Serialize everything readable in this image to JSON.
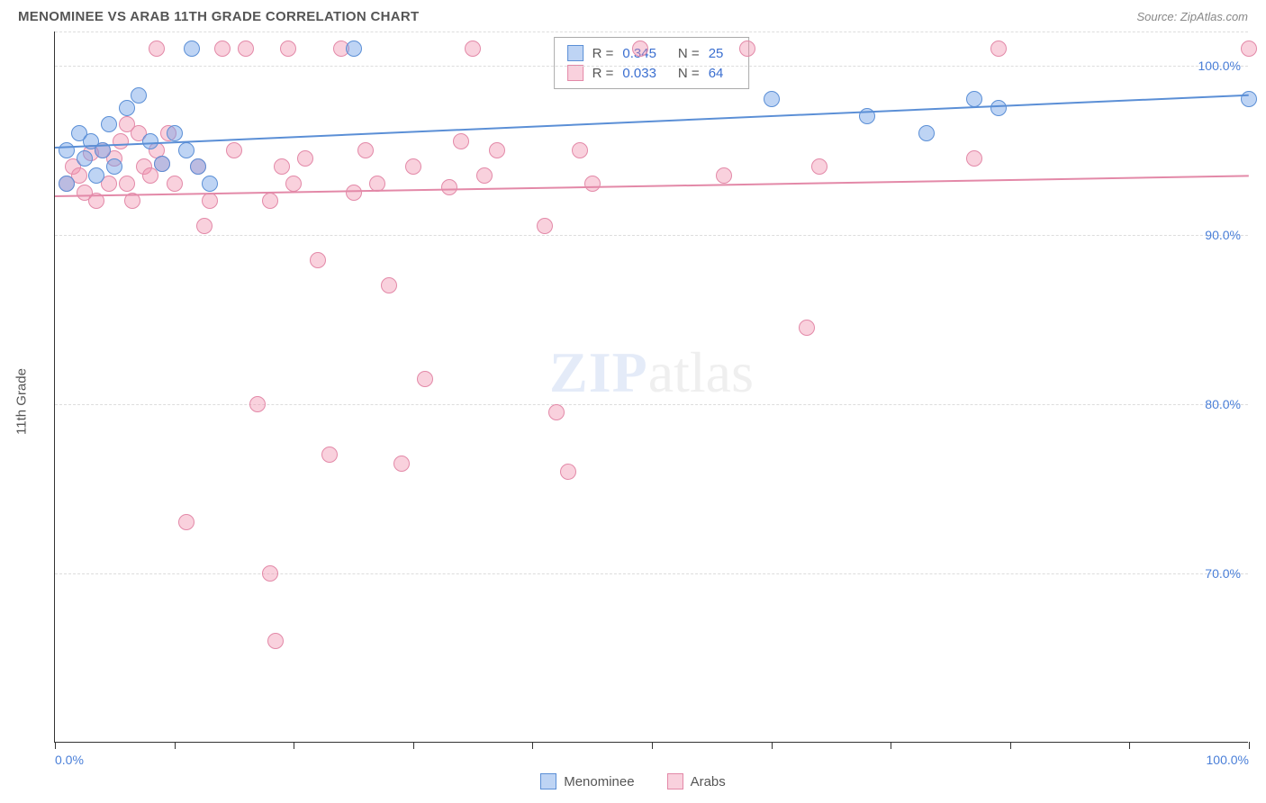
{
  "title": "MENOMINEE VS ARAB 11TH GRADE CORRELATION CHART",
  "source": "Source: ZipAtlas.com",
  "ylabel": "11th Grade",
  "watermark": {
    "zip": "ZIP",
    "atlas": "atlas"
  },
  "colors": {
    "series1_fill": "rgba(110,160,230,0.45)",
    "series1_stroke": "#5b8fd6",
    "series2_fill": "rgba(240,140,170,0.40)",
    "series2_stroke": "#e389a8",
    "axis_text": "#4a7fd8",
    "grid": "#dddddd",
    "text": "#555555"
  },
  "xaxis": {
    "min": 0,
    "max": 100,
    "tick_step": 10,
    "labels": {
      "0": "0.0%",
      "100": "100.0%"
    }
  },
  "yaxis": {
    "min": 60,
    "max": 102,
    "gridlines": [
      70,
      80,
      90,
      100
    ],
    "labels": {
      "70": "70.0%",
      "80": "80.0%",
      "90": "90.0%",
      "100": "100.0%"
    }
  },
  "point_radius": 9,
  "legend_stats": [
    {
      "series": "s1",
      "R_label": "R =",
      "R": "0.345",
      "N_label": "N =",
      "N": "25"
    },
    {
      "series": "s2",
      "R_label": "R =",
      "R": "0.033",
      "N_label": "N =",
      "N": "64"
    }
  ],
  "bottom_legend": [
    {
      "series": "s1",
      "label": "Menominee"
    },
    {
      "series": "s2",
      "label": "Arabs"
    }
  ],
  "series": {
    "s1": {
      "name": "Menominee",
      "points": [
        [
          1,
          95
        ],
        [
          1,
          93
        ],
        [
          2,
          96
        ],
        [
          2.5,
          94.5
        ],
        [
          3,
          95.5
        ],
        [
          3.5,
          93.5
        ],
        [
          4,
          95
        ],
        [
          4.5,
          96.5
        ],
        [
          5,
          94
        ],
        [
          6,
          97.5
        ],
        [
          7,
          98.2
        ],
        [
          8,
          95.5
        ],
        [
          9,
          94.2
        ],
        [
          10,
          96
        ],
        [
          11,
          95
        ],
        [
          11.5,
          101
        ],
        [
          12,
          94
        ],
        [
          13,
          93
        ],
        [
          25,
          101
        ],
        [
          60,
          98
        ],
        [
          68,
          97
        ],
        [
          73,
          96
        ],
        [
          77,
          98
        ],
        [
          79,
          97.5
        ],
        [
          100,
          98
        ]
      ],
      "trend": {
        "y_at_x0": 95.2,
        "y_at_x100": 98.3
      }
    },
    "s2": {
      "name": "Arabs",
      "points": [
        [
          1,
          93
        ],
        [
          1.5,
          94
        ],
        [
          2,
          93.5
        ],
        [
          2.5,
          92.5
        ],
        [
          3,
          94.8
        ],
        [
          3.5,
          92
        ],
        [
          4,
          95
        ],
        [
          4.5,
          93
        ],
        [
          5,
          94.5
        ],
        [
          5.5,
          95.5
        ],
        [
          6,
          93
        ],
        [
          6.5,
          92
        ],
        [
          7,
          96
        ],
        [
          7.5,
          94
        ],
        [
          8,
          93.5
        ],
        [
          8.5,
          95
        ],
        [
          9,
          94.2
        ],
        [
          9.5,
          96
        ],
        [
          10,
          93
        ],
        [
          11,
          73
        ],
        [
          12,
          94
        ],
        [
          12.5,
          90.5
        ],
        [
          13,
          92
        ],
        [
          14,
          101
        ],
        [
          15,
          95
        ],
        [
          16,
          101
        ],
        [
          17,
          80
        ],
        [
          18,
          70
        ],
        [
          18.5,
          66
        ],
        [
          19,
          94
        ],
        [
          19.5,
          101
        ],
        [
          20,
          93
        ],
        [
          21,
          94.5
        ],
        [
          22,
          88.5
        ],
        [
          23,
          77
        ],
        [
          24,
          101
        ],
        [
          25,
          92.5
        ],
        [
          26,
          95
        ],
        [
          27,
          93
        ],
        [
          28,
          87
        ],
        [
          29,
          76.5
        ],
        [
          30,
          94
        ],
        [
          31,
          81.5
        ],
        [
          33,
          92.8
        ],
        [
          34,
          95.5
        ],
        [
          35,
          101
        ],
        [
          36,
          93.5
        ],
        [
          37,
          95
        ],
        [
          41,
          90.5
        ],
        [
          42,
          79.5
        ],
        [
          43,
          76
        ],
        [
          44,
          95
        ],
        [
          45,
          93
        ],
        [
          49,
          101
        ],
        [
          56,
          93.5
        ],
        [
          58,
          101
        ],
        [
          63,
          84.5
        ],
        [
          64,
          94
        ],
        [
          77,
          94.5
        ],
        [
          79,
          101
        ],
        [
          100,
          101
        ],
        [
          18,
          92
        ],
        [
          6,
          96.5
        ],
        [
          8.5,
          101
        ]
      ],
      "trend": {
        "y_at_x0": 92.3,
        "y_at_x100": 93.5
      }
    }
  }
}
